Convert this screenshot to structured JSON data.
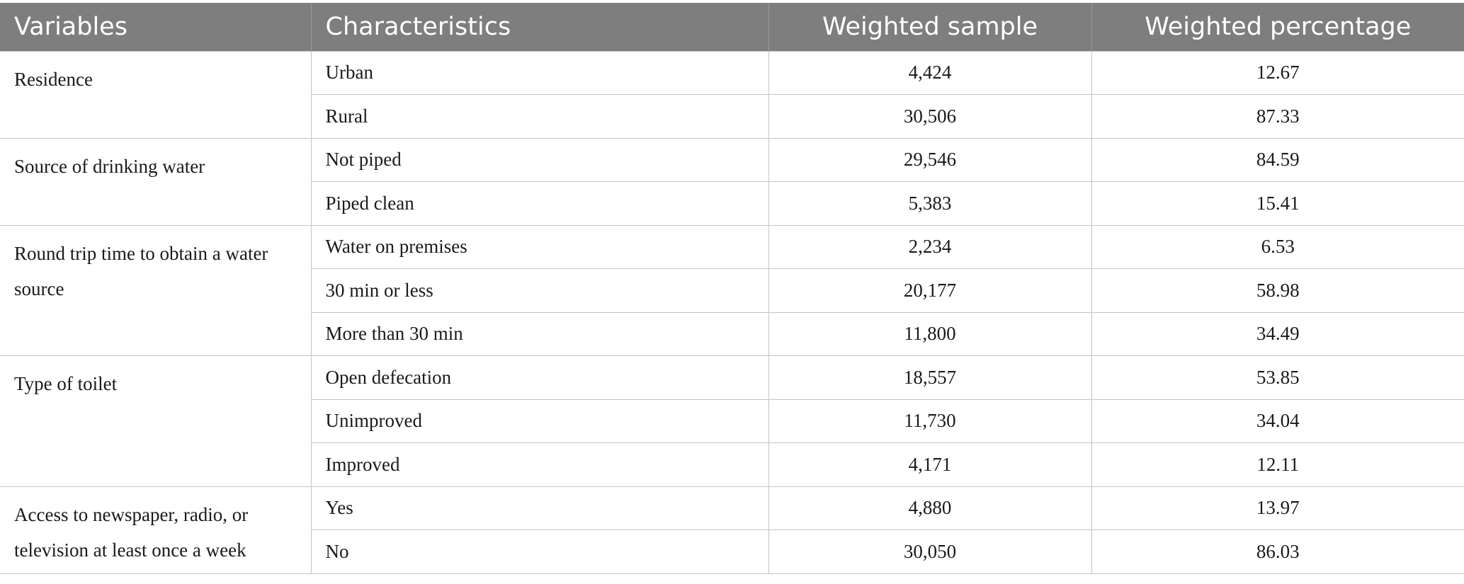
{
  "headers": {
    "variables": "Variables",
    "characteristics": "Characteristics",
    "weighted_sample": "Weighted sample",
    "weighted_percentage": "Weighted percentage"
  },
  "groups": [
    {
      "variable": "Residence",
      "rows": [
        {
          "characteristic": "Urban",
          "sample": "4,424",
          "percentage": "12.67"
        },
        {
          "characteristic": "Rural",
          "sample": "30,506",
          "percentage": "87.33"
        }
      ]
    },
    {
      "variable": "Source of drinking water",
      "rows": [
        {
          "characteristic": "Not piped",
          "sample": "29,546",
          "percentage": "84.59"
        },
        {
          "characteristic": "Piped clean",
          "sample": "5,383",
          "percentage": "15.41"
        }
      ]
    },
    {
      "variable": "Round trip time to obtain a water source",
      "rows": [
        {
          "characteristic": "Water on premises",
          "sample": "2,234",
          "percentage": "6.53"
        },
        {
          "characteristic": "30 min or less",
          "sample": "20,177",
          "percentage": "58.98"
        },
        {
          "characteristic": "More than 30 min",
          "sample": "11,800",
          "percentage": "34.49"
        }
      ]
    },
    {
      "variable": "Type of toilet",
      "rows": [
        {
          "characteristic": "Open defecation",
          "sample": "18,557",
          "percentage": "53.85"
        },
        {
          "characteristic": "Unimproved",
          "sample": "11,730",
          "percentage": "34.04"
        },
        {
          "characteristic": "Improved",
          "sample": "4,171",
          "percentage": "12.11"
        }
      ]
    },
    {
      "variable": "Access to newspaper, radio, or television at least once a week",
      "rows": [
        {
          "characteristic": "Yes",
          "sample": "4,880",
          "percentage": "13.97"
        },
        {
          "characteristic": "No",
          "sample": "30,050",
          "percentage": "86.03"
        }
      ]
    }
  ]
}
